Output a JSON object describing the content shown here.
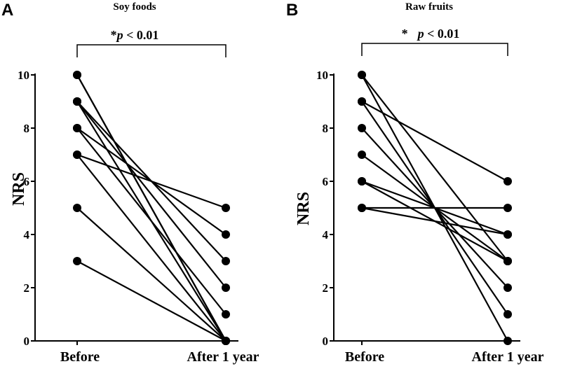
{
  "chart_data": [
    {
      "type": "line",
      "panel_label": "A",
      "title": "Soy foods",
      "ylabel": "NRS",
      "categories": [
        "Before",
        "After 1 year"
      ],
      "ylim": [
        0,
        10
      ],
      "yticks": [
        "0",
        "2",
        "4",
        "6",
        "8",
        "10"
      ],
      "significance": {
        "star": "*",
        "p_symbol": "p",
        "p_text": " < 0.01"
      },
      "pairs": [
        [
          10,
          0
        ],
        [
          10,
          0
        ],
        [
          9,
          0
        ],
        [
          9,
          2
        ],
        [
          9,
          3
        ],
        [
          8,
          1
        ],
        [
          8,
          4
        ],
        [
          7,
          0
        ],
        [
          7,
          5
        ],
        [
          5,
          0
        ],
        [
          3,
          0
        ]
      ]
    },
    {
      "type": "line",
      "panel_label": "B",
      "title": "Raw fruits",
      "ylabel": "NRS",
      "categories": [
        "Before",
        "After 1 year"
      ],
      "ylim": [
        0,
        10
      ],
      "yticks": [
        "0",
        "2",
        "4",
        "6",
        "8",
        "10"
      ],
      "significance": {
        "star": "*",
        "p_symbol": "p",
        "p_text": " < 0.01"
      },
      "pairs": [
        [
          10,
          0
        ],
        [
          10,
          3
        ],
        [
          9,
          6
        ],
        [
          9,
          1
        ],
        [
          8,
          2
        ],
        [
          7,
          3
        ],
        [
          6,
          3
        ],
        [
          6,
          4
        ],
        [
          5,
          4
        ],
        [
          5,
          5
        ]
      ]
    }
  ]
}
